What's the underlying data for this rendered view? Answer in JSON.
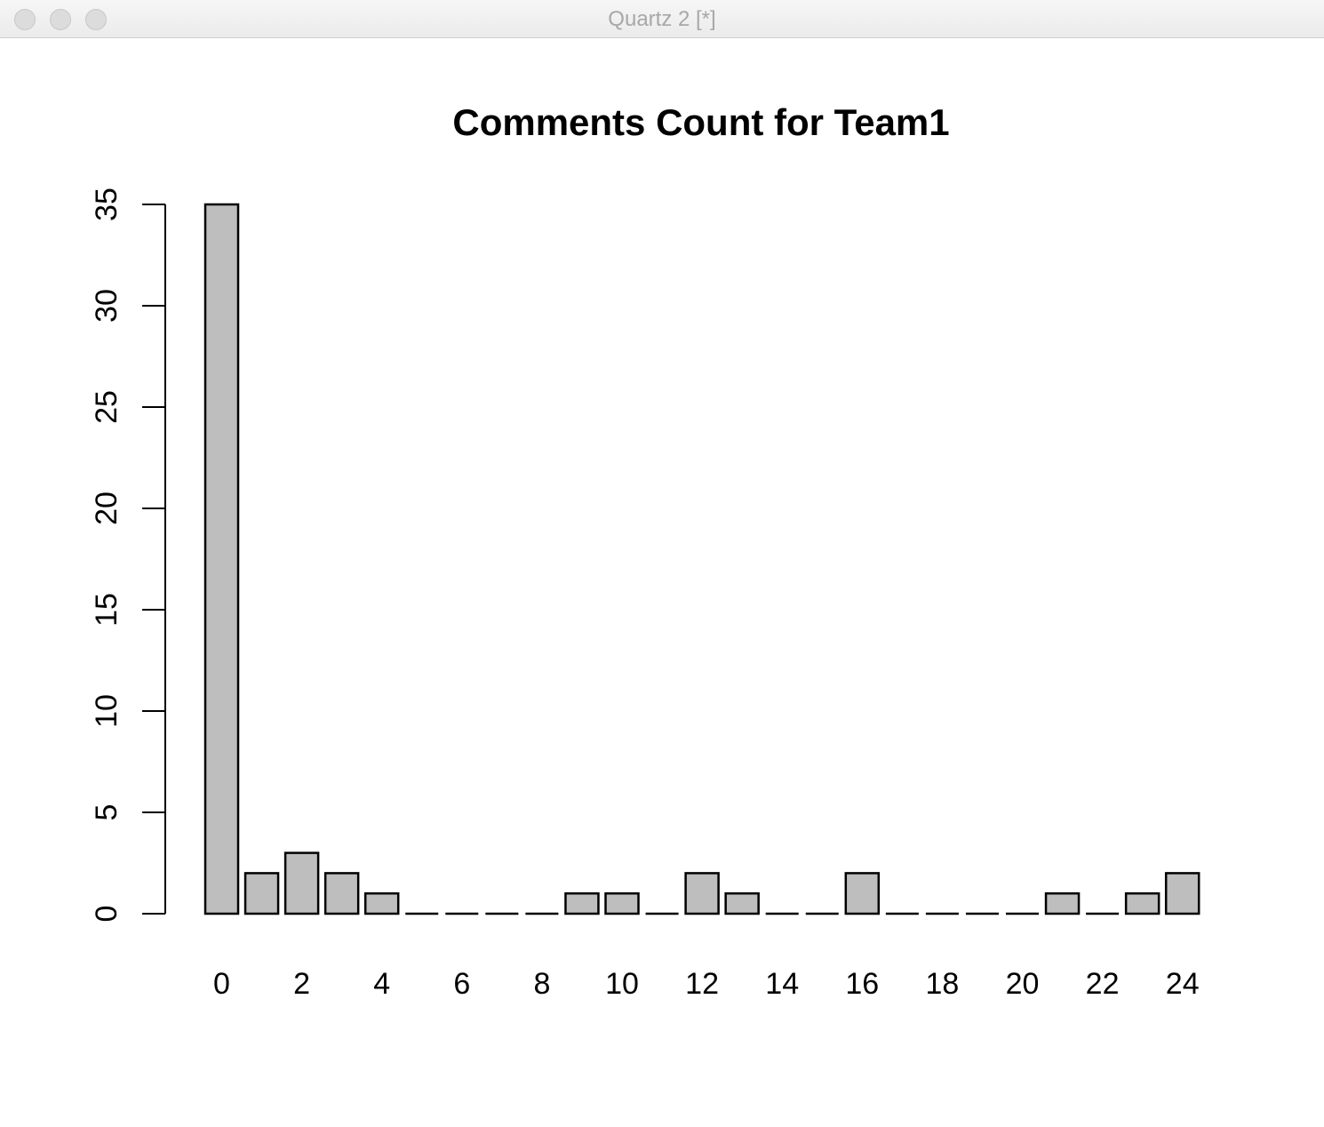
{
  "window": {
    "title": "Quartz 2 [*]",
    "controls": [
      "close-icon",
      "minimize-icon",
      "zoom-icon"
    ]
  },
  "chart_data": {
    "type": "bar",
    "title": "Comments Count for Team1",
    "xlabel": "",
    "ylabel": "",
    "categories": [
      0,
      1,
      2,
      3,
      4,
      5,
      6,
      7,
      8,
      9,
      10,
      11,
      12,
      13,
      14,
      15,
      16,
      17,
      18,
      19,
      20,
      21,
      22,
      23,
      24
    ],
    "values": [
      35,
      2,
      3,
      2,
      1,
      0,
      0,
      0,
      0,
      1,
      1,
      0,
      2,
      1,
      0,
      0,
      2,
      0,
      0,
      0,
      0,
      1,
      0,
      1,
      2
    ],
    "x_tick_labels": [
      "0",
      "2",
      "4",
      "6",
      "8",
      "10",
      "12",
      "14",
      "16",
      "18",
      "20",
      "22",
      "24"
    ],
    "y_ticks": [
      0,
      5,
      10,
      15,
      20,
      25,
      30,
      35
    ],
    "ylim": [
      0,
      35
    ],
    "bar_fill": "#bebebe",
    "bar_stroke": "#000000",
    "grid": false,
    "legend": "none"
  }
}
